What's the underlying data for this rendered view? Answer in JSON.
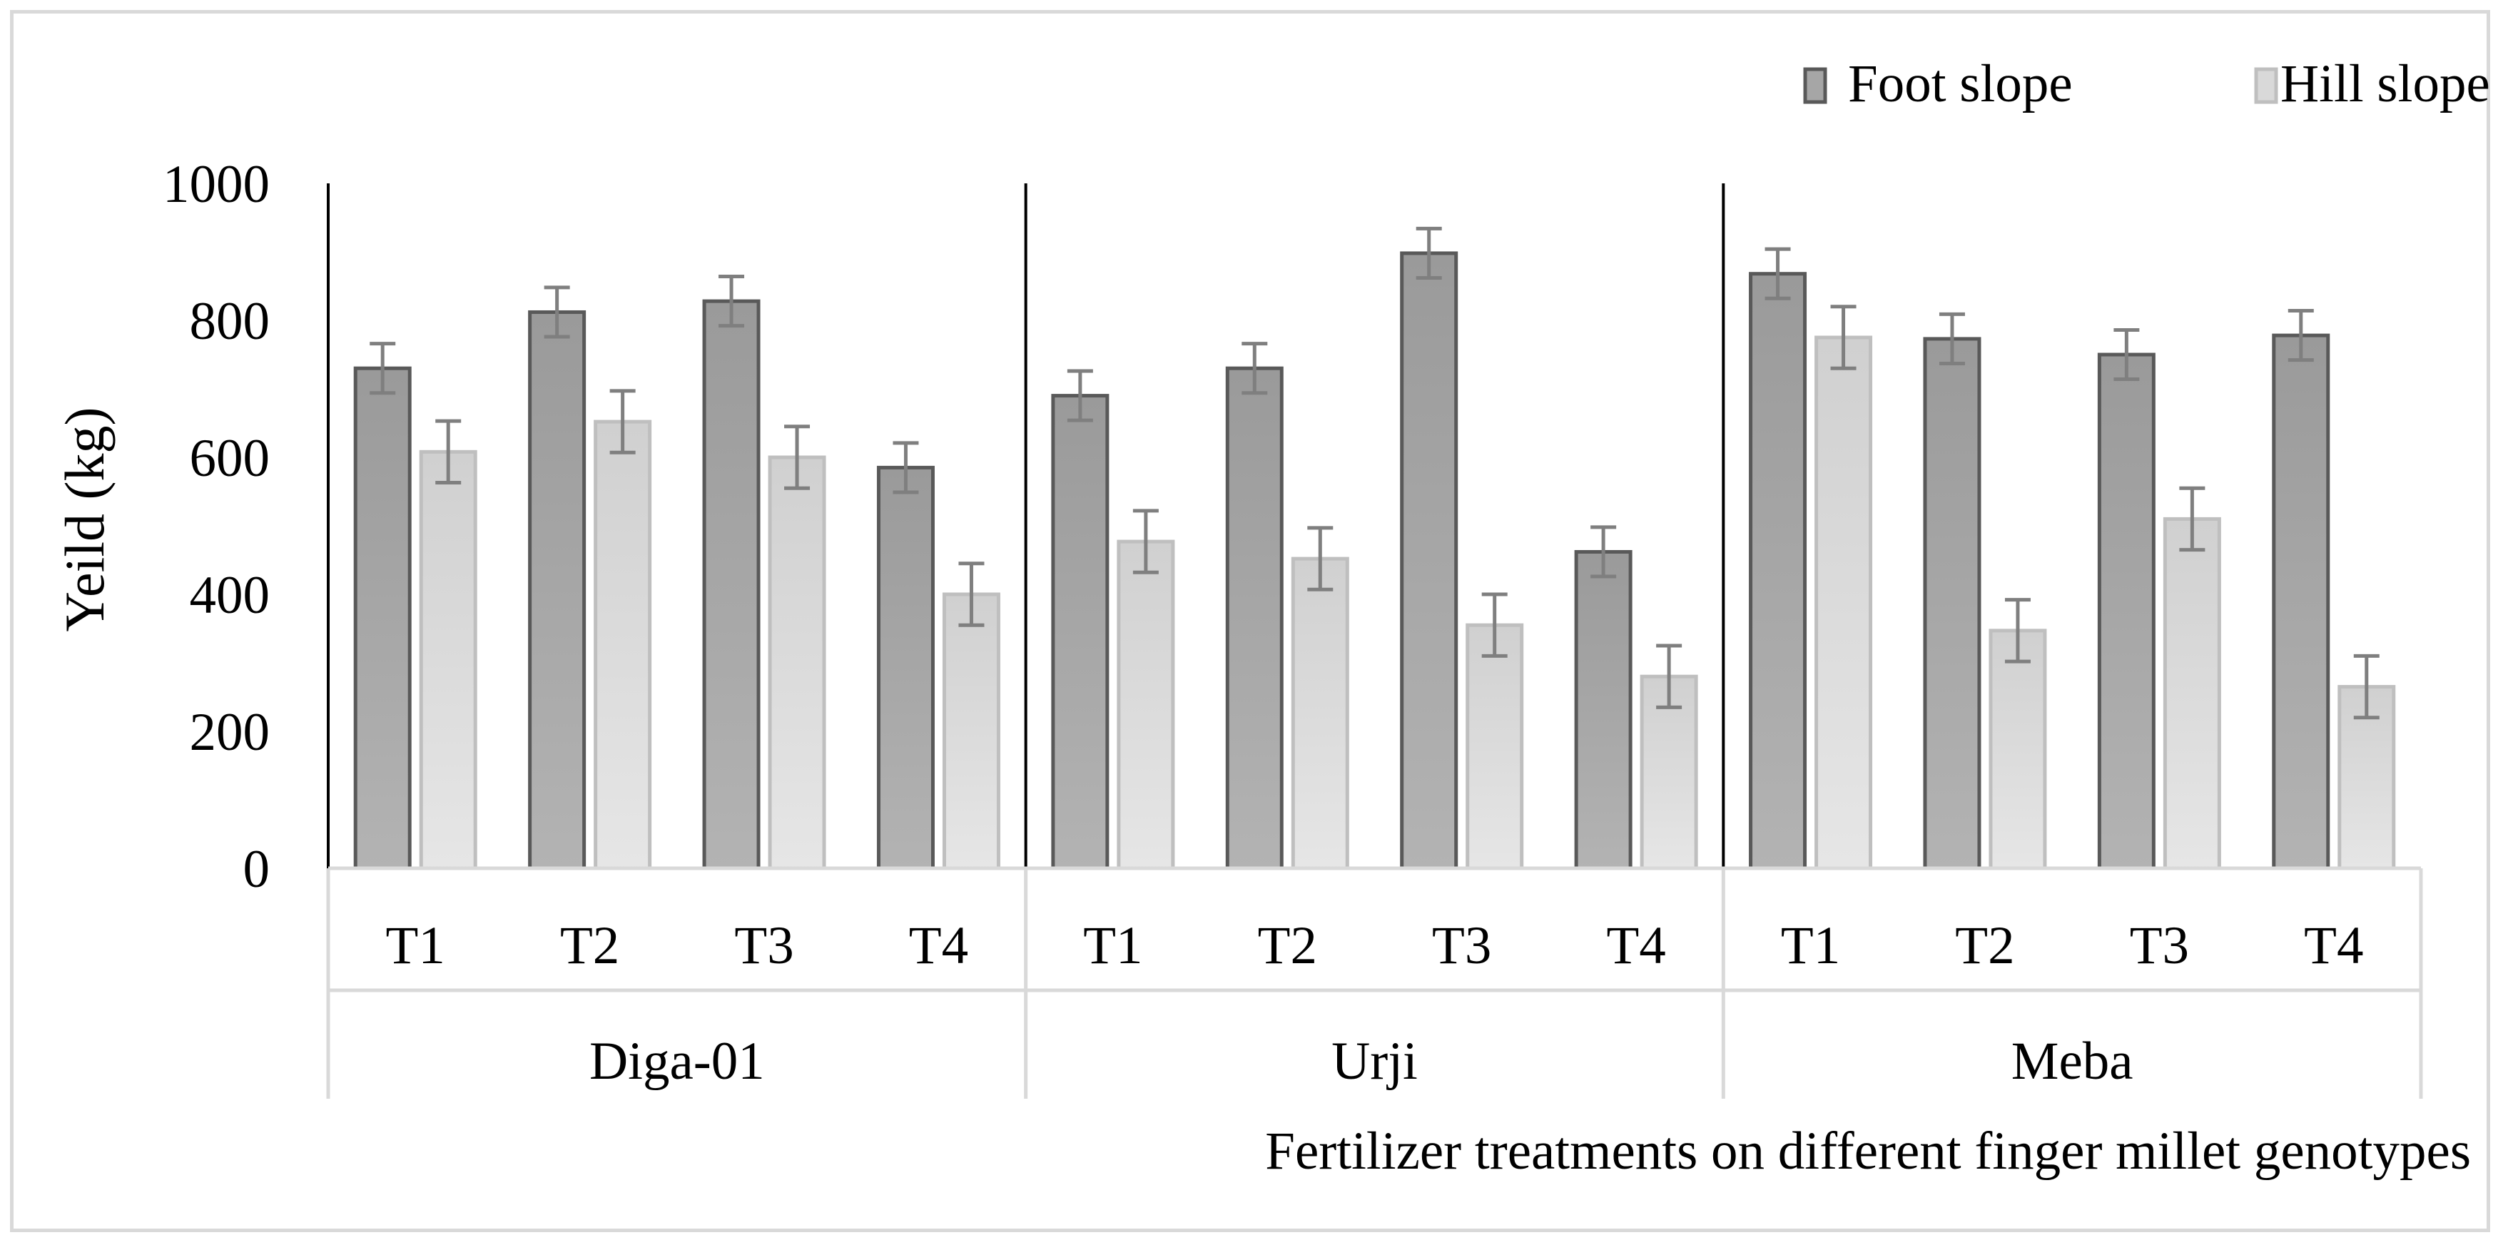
{
  "chart_data": {
    "type": "bar",
    "title": "",
    "ylabel": "Yeild (kg)",
    "xlabel": "Fertilizer treatments on different finger millet genotypes",
    "ylim": [
      0,
      1000
    ],
    "yticks": [
      "0",
      "200",
      "400",
      "600",
      "800",
      "1000"
    ],
    "legend_position": "top-right",
    "groups": [
      {
        "name": "Diga-01",
        "categories": [
          "T1",
          "T2",
          "T3",
          "T4"
        ]
      },
      {
        "name": "Urji",
        "categories": [
          "T1",
          "T2",
          "T3",
          "T4"
        ]
      },
      {
        "name": "Meba",
        "categories": [
          "T1",
          "T2",
          "T3",
          "T4"
        ]
      }
    ],
    "series": [
      {
        "name": "Foot slope",
        "color": "#a6a6a6",
        "edge": "#595959",
        "values": [
          730,
          812,
          828,
          585,
          690,
          730,
          898,
          462,
          868,
          773,
          750,
          778
        ],
        "errors": [
          36,
          36,
          36,
          36,
          36,
          36,
          36,
          36,
          36,
          36,
          36,
          36
        ]
      },
      {
        "name": "Hill slope",
        "color": "#d9d9d9",
        "edge": "#bfbfbf",
        "values": [
          608,
          652,
          600,
          400,
          477,
          452,
          355,
          280,
          775,
          347,
          510,
          265
        ],
        "errors": [
          45,
          45,
          45,
          45,
          45,
          45,
          45,
          45,
          45,
          45,
          45,
          45
        ]
      }
    ]
  }
}
